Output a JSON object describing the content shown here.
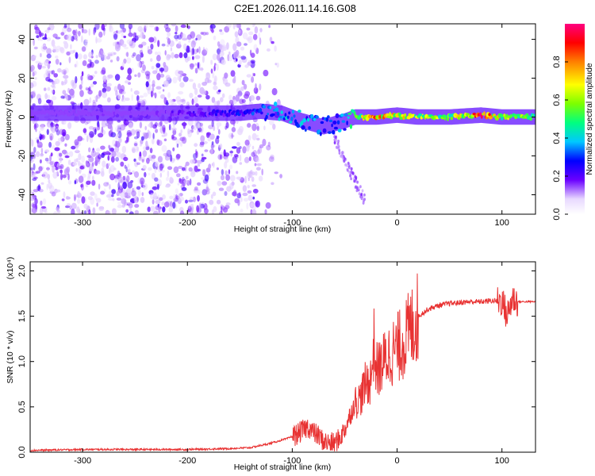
{
  "title": "C2E1.2026.011.14.16.G08",
  "chart_data": [
    {
      "type": "heatmap",
      "title": "C2E1.2026.011.14.16.G08",
      "xlabel": "Height of straight line (km)",
      "ylabel": "Frequency (Hz)",
      "xlim": [
        -350,
        132
      ],
      "ylim": [
        -50,
        48
      ],
      "xticks": [
        -300,
        -200,
        -100,
        0,
        100
      ],
      "xtick_labels": [
        "-300",
        "-200",
        "-100",
        "0",
        "100"
      ],
      "yticks": [
        -40,
        -20,
        0,
        20,
        40
      ],
      "ytick_labels": [
        "-40",
        "-20",
        "0",
        "20",
        "40"
      ],
      "colorbar": {
        "label": "Normalized spectral amplitude",
        "range": [
          0,
          1
        ],
        "ticks": [
          0.0,
          0.2,
          0.4,
          0.6,
          0.8
        ],
        "tick_labels": [
          "0.0",
          "0.2",
          "0.4",
          "0.6",
          "0.8"
        ]
      },
      "ridge": {
        "x": [
          -350,
          -300,
          -250,
          -200,
          -150,
          -130,
          -110,
          -90,
          -70,
          -50,
          -40,
          -30,
          -20,
          0,
          20,
          50,
          80,
          100,
          132
        ],
        "y": [
          2,
          2,
          2,
          2,
          2,
          3,
          2,
          -2,
          -5,
          -2,
          0,
          0,
          0,
          1,
          0,
          0,
          1,
          0,
          0
        ],
        "amplitude": [
          0.12,
          0.13,
          0.14,
          0.18,
          0.25,
          0.3,
          0.35,
          0.35,
          0.3,
          0.35,
          0.5,
          0.7,
          0.75,
          0.7,
          0.6,
          0.55,
          0.85,
          0.6,
          0.55
        ]
      },
      "noise_region_x": [
        -350,
        -130
      ]
    },
    {
      "type": "line",
      "xlabel": "Height of straight line (km)",
      "ylabel": "SNR (10 * v/v)",
      "y_scale_label": "(x10⁴)",
      "xlim": [
        -350,
        132
      ],
      "ylim": [
        0,
        2.1
      ],
      "xticks": [
        -300,
        -200,
        -100,
        0,
        100
      ],
      "xtick_labels": [
        "-300",
        "-200",
        "-100",
        "0",
        "100"
      ],
      "yticks": [
        0.0,
        0.5,
        1.0,
        1.5,
        2.0
      ],
      "ytick_labels": [
        "0.0",
        "0.5",
        "1.0",
        "1.5",
        "2.0"
      ],
      "color": "#e83232",
      "series": [
        {
          "name": "SNR",
          "x": [
            -350,
            -300,
            -250,
            -200,
            -160,
            -140,
            -120,
            -105,
            -95,
            -85,
            -80,
            -75,
            -70,
            -65,
            -60,
            -55,
            -50,
            -45,
            -40,
            -35,
            -30,
            -25,
            -22,
            -20,
            -15,
            -10,
            -5,
            0,
            5,
            10,
            15,
            20,
            30,
            40,
            50,
            60,
            70,
            80,
            90,
            100,
            105,
            110,
            115,
            120,
            132
          ],
          "y": [
            0.02,
            0.03,
            0.03,
            0.03,
            0.04,
            0.05,
            0.1,
            0.15,
            0.2,
            0.28,
            0.22,
            0.18,
            0.12,
            0.1,
            0.1,
            0.15,
            0.25,
            0.4,
            0.55,
            0.6,
            0.75,
            0.8,
            1.2,
            0.9,
            0.95,
            1.05,
            1.1,
            1.15,
            1.2,
            1.3,
            1.4,
            1.5,
            1.58,
            1.62,
            1.64,
            1.65,
            1.66,
            1.66,
            1.67,
            1.67,
            1.5,
            1.7,
            1.66,
            1.66,
            1.66
          ]
        }
      ]
    }
  ]
}
